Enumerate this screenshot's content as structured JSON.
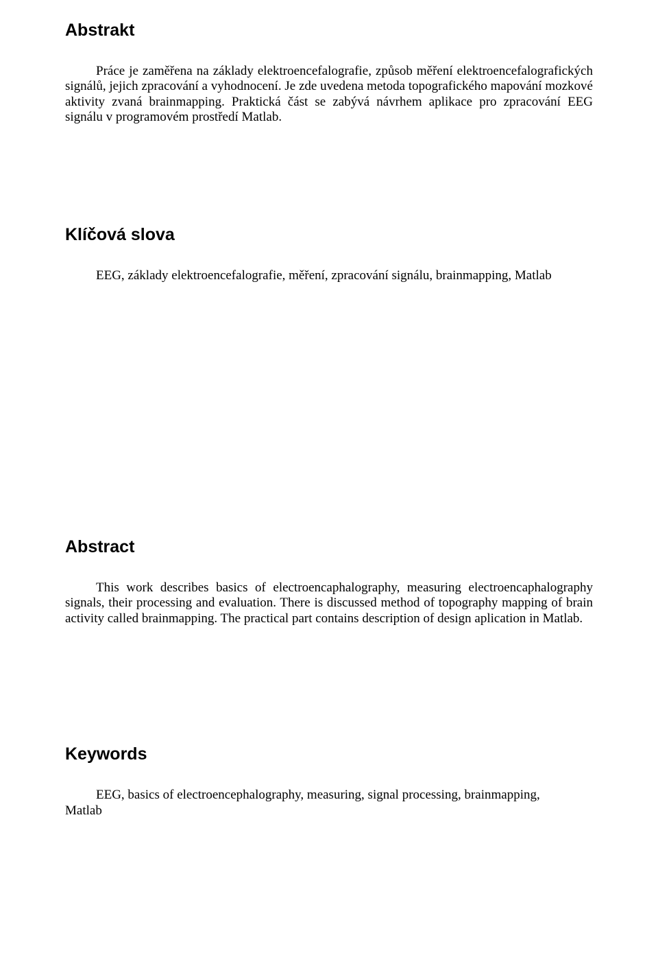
{
  "abstrakt": {
    "heading": "Abstrakt",
    "text": "Práce je zaměřena na základy elektroencefalografie, způsob měření elektroencefalografických signálů, jejich zpracování a vyhodnocení. Je zde uvedena metoda topografického mapování mozkové aktivity zvaná brainmapping. Praktická část se zabývá návrhem aplikace pro zpracování EEG signálu v programovém prostředí Matlab."
  },
  "klicova": {
    "heading": "Klíčová slova",
    "text": "EEG, základy elektroencefalografie, měření, zpracování signálu, brainmapping, Matlab"
  },
  "abstract_en": {
    "heading": "Abstract",
    "text": "This work describes basics of electroencaphalography, measuring electroencaphalography signals, their processing and evaluation. There is discussed method of topography mapping of brain activity called brainmapping. The practical part contains description of design aplication in Matlab."
  },
  "keywords": {
    "heading": "Keywords",
    "line1": "EEG, basics of electroencephalography, measuring, signal processing, brainmapping,",
    "line2": "Matlab"
  },
  "styles": {
    "heading_font": "Arial",
    "body_font": "Times New Roman",
    "heading_size_pt": 18,
    "body_size_pt": 14,
    "text_color": "#000000",
    "background_color": "#ffffff"
  }
}
